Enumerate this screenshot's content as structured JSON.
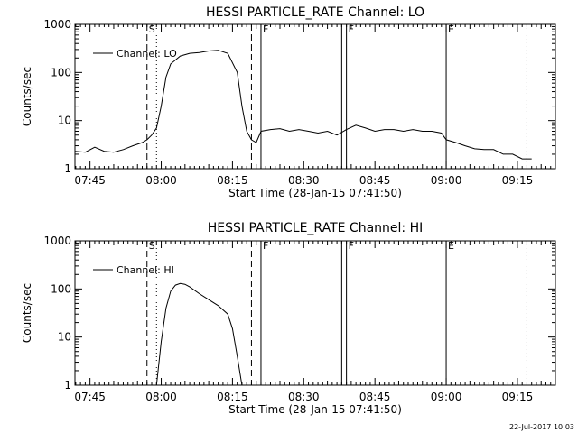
{
  "timestamp": "22-Jul-2017 10:03",
  "chart_data": [
    {
      "type": "line",
      "title": "HESSI PARTICLE_RATE Channel: LO",
      "xlabel": "Start Time (28-Jan-15 07:41:50)",
      "ylabel": "Counts/sec",
      "y_scale": "log",
      "ylim": [
        1,
        1000
      ],
      "xlim": [
        "07:41:50",
        "09:23:00"
      ],
      "xticks": [
        "07:45",
        "08:00",
        "08:15",
        "08:30",
        "08:45",
        "09:00",
        "09:15"
      ],
      "yticks": [
        "1",
        "10",
        "100",
        "1000"
      ],
      "legend": {
        "position": "top-left",
        "entries": [
          "Channel: LO"
        ]
      },
      "markers": [
        {
          "time": "07:57:00",
          "style": "dashed",
          "label": "S"
        },
        {
          "time": "07:59:00",
          "style": "dotted",
          "label": ""
        },
        {
          "time": "08:19:00",
          "style": "dashed",
          "label": ""
        },
        {
          "time": "08:21:00",
          "style": "solid",
          "label": "F"
        },
        {
          "time": "08:38:00",
          "style": "solid",
          "label": ""
        },
        {
          "time": "08:39:00",
          "style": "solid",
          "label": "F"
        },
        {
          "time": "09:00:00",
          "style": "solid",
          "label": "E"
        },
        {
          "time": "09:17:00",
          "style": "dotted",
          "label": ""
        }
      ],
      "series": [
        {
          "name": "Channel: LO",
          "x": [
            "07:41:50",
            "07:44",
            "07:46",
            "07:48",
            "07:50",
            "07:52",
            "07:54",
            "07:56",
            "07:57",
            "07:58",
            "07:59",
            "08:00",
            "08:01",
            "08:02",
            "08:04",
            "08:06",
            "08:08",
            "08:10",
            "08:12",
            "08:14",
            "08:16",
            "08:17",
            "08:18",
            "08:19",
            "08:20",
            "08:21",
            "08:23",
            "08:25",
            "08:27",
            "08:29",
            "08:31",
            "08:33",
            "08:35",
            "08:37",
            "08:39",
            "08:41",
            "08:43",
            "08:45",
            "08:47",
            "08:49",
            "08:51",
            "08:53",
            "08:55",
            "08:57",
            "08:59",
            "09:00",
            "09:02",
            "09:04",
            "09:06",
            "09:08",
            "09:10",
            "09:12",
            "09:14",
            "09:16",
            "09:18"
          ],
          "y": [
            2.3,
            2.2,
            2.8,
            2.3,
            2.2,
            2.5,
            3.0,
            3.5,
            4.0,
            5.0,
            7.0,
            20,
            80,
            150,
            220,
            250,
            260,
            280,
            290,
            250,
            100,
            20,
            6,
            4,
            3.5,
            6,
            6.5,
            6.8,
            6.0,
            6.5,
            6.0,
            5.5,
            6.0,
            5.0,
            6.5,
            8.0,
            7.0,
            6.0,
            6.5,
            6.5,
            6.0,
            6.5,
            6.0,
            6.0,
            5.5,
            4.0,
            3.5,
            3.0,
            2.6,
            2.5,
            2.5,
            2.0,
            2.0,
            1.6,
            1.6
          ]
        }
      ]
    },
    {
      "type": "line",
      "title": "HESSI PARTICLE_RATE Channel: HI",
      "xlabel": "Start Time (28-Jan-15 07:41:50)",
      "ylabel": "Counts/sec",
      "y_scale": "log",
      "ylim": [
        1,
        1000
      ],
      "xlim": [
        "07:41:50",
        "09:23:00"
      ],
      "xticks": [
        "07:45",
        "08:00",
        "08:15",
        "08:30",
        "08:45",
        "09:00",
        "09:15"
      ],
      "yticks": [
        "1",
        "10",
        "100",
        "1000"
      ],
      "legend": {
        "position": "top-left",
        "entries": [
          "Channel: HI"
        ]
      },
      "markers": [
        {
          "time": "07:57:00",
          "style": "dashed",
          "label": "S"
        },
        {
          "time": "07:59:00",
          "style": "dotted",
          "label": ""
        },
        {
          "time": "08:19:00",
          "style": "dashed",
          "label": ""
        },
        {
          "time": "08:21:00",
          "style": "solid",
          "label": "F"
        },
        {
          "time": "08:38:00",
          "style": "solid",
          "label": ""
        },
        {
          "time": "08:39:00",
          "style": "solid",
          "label": "F"
        },
        {
          "time": "09:00:00",
          "style": "solid",
          "label": "E"
        },
        {
          "time": "09:17:00",
          "style": "dotted",
          "label": ""
        }
      ],
      "series": [
        {
          "name": "Channel: HI",
          "x": [
            "07:59",
            "08:00",
            "08:01",
            "08:02",
            "08:03",
            "08:04",
            "08:05",
            "08:06",
            "08:08",
            "08:10",
            "08:12",
            "08:14",
            "08:15",
            "08:16",
            "08:17"
          ],
          "y": [
            1.0,
            8,
            40,
            90,
            120,
            130,
            125,
            110,
            80,
            60,
            45,
            30,
            15,
            4,
            1.0
          ]
        }
      ]
    }
  ]
}
